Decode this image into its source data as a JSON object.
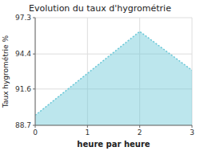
{
  "chart_data": {
    "type": "area",
    "title": "Evolution du taux d'hygrométrie",
    "x_label": "heure par heure",
    "y_label": "Taux hygrométrie %",
    "x": [
      0,
      2,
      3
    ],
    "y": [
      89.5,
      96.2,
      93.1
    ],
    "xlim": [
      0,
      3
    ],
    "ylim": [
      88.7,
      97.3
    ],
    "xticks": [
      0,
      1,
      2,
      3
    ],
    "yticks": [
      88.7,
      91.6,
      94.4,
      97.3
    ],
    "color": "#6bc8d8",
    "line_style": "dotted",
    "grid": true
  }
}
